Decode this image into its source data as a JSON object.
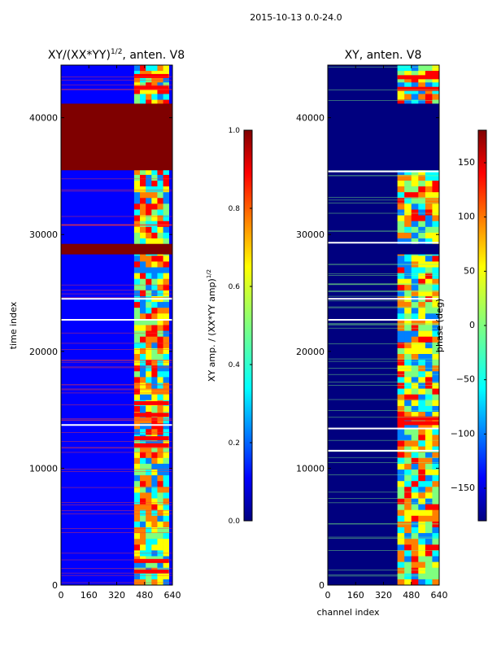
{
  "figure": {
    "suptitle": "2015-10-13 0.0-24.0",
    "shared_xlabel": "channel index"
  },
  "colors": {
    "jet": [
      "#00007f",
      "#0000ff",
      "#007fff",
      "#00ffff",
      "#7fff7f",
      "#ffff00",
      "#ff7f00",
      "#ff0000",
      "#7f0000"
    ],
    "line": "#ff3b2f",
    "white": "#ffffff"
  },
  "chart_data": [
    {
      "type": "heatmap",
      "title": "XY/(XX*YY)",
      "title_sup": "1/2",
      "title_suffix": ", anten. V8",
      "ylabel": "time index",
      "xlim": [
        0,
        640
      ],
      "ylim": [
        0,
        44500
      ],
      "xticks": [
        0,
        160,
        320,
        480,
        640
      ],
      "yticks": [
        0,
        10000,
        20000,
        30000,
        40000
      ],
      "colorbar": {
        "label": "XY amp. / (XX*YY amp)",
        "label_sup": "1/2",
        "range": [
          0.0,
          1.0
        ],
        "ticks": [
          "0.0",
          "0.2",
          "0.4",
          "0.6",
          "0.8",
          "1.0"
        ]
      },
      "background_value": 0.15,
      "active_band_channels": [
        420,
        620
      ],
      "active_band_value": 0.55,
      "saturated_blocks": [
        {
          "t0": 35500,
          "t1": 41200,
          "value": 1.0
        },
        {
          "t0": 28300,
          "t1": 29200,
          "value": 1.0
        }
      ],
      "hot_rows": [
        1200,
        2100,
        12000,
        12600,
        14600,
        15600,
        42600,
        43600
      ],
      "flag_lines": [
        13700,
        22700,
        24500
      ]
    },
    {
      "type": "heatmap",
      "title": "XY, anten. V8",
      "ylabel": "",
      "xlim": [
        0,
        640
      ],
      "ylim": [
        0,
        44500
      ],
      "xticks": [
        0,
        160,
        320,
        480,
        640
      ],
      "yticks": [
        0,
        10000,
        20000,
        30000,
        40000
      ],
      "colorbar": {
        "label": "phase (deg)",
        "range": [
          -180,
          180
        ],
        "ticks": [
          "−150",
          "−100",
          "−50",
          "0",
          "50",
          "100",
          "150"
        ]
      },
      "background_value": -170,
      "active_band_channels": [
        400,
        640
      ],
      "active_band_value": 20,
      "saturated_blocks": [
        {
          "t0": 35500,
          "t1": 41200,
          "value": -180
        },
        {
          "t0": 28300,
          "t1": 29200,
          "value": -180
        }
      ],
      "hot_rows": [
        13900,
        14300,
        42500,
        43500
      ],
      "flag_lines": [
        11500,
        13400,
        22700,
        24500,
        29300,
        35400
      ]
    }
  ]
}
